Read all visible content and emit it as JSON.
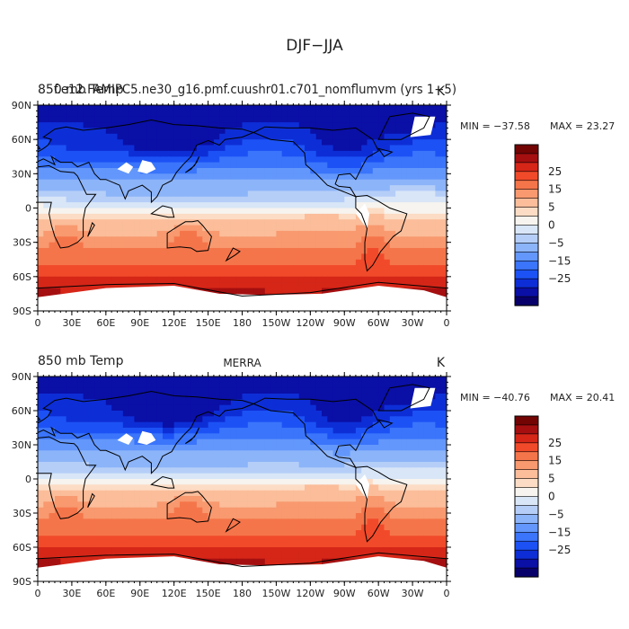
{
  "title": "DJF−JJA",
  "colormap": {
    "colors": [
      "#08006a",
      "#0a0fa6",
      "#0d2ed6",
      "#1c52f5",
      "#3a75fb",
      "#6397fb",
      "#8cb4f9",
      "#b5cef8",
      "#d8e6f7",
      "#f7f3ee",
      "#fcdcc4",
      "#fbbd9a",
      "#f8996f",
      "#f5754a",
      "#f14a2a",
      "#d52618",
      "#a50f10",
      "#730404"
    ],
    "bounds": [
      -35,
      -30,
      -25,
      -20,
      -15,
      -10,
      -5,
      -2.5,
      0,
      2.5,
      5,
      10,
      15,
      20,
      25,
      30,
      35
    ],
    "tick_labels": [
      "25",
      "15",
      "5",
      "0",
      "−5",
      "−15",
      "−25"
    ],
    "tick_values": [
      25,
      15,
      5,
      0,
      -5,
      -15,
      -25
    ]
  },
  "chart_data": [
    {
      "type": "heatmap",
      "title_left": "850 mb Temp",
      "overlap_text": "f.e12.FAMIPC5.ne30_g16.pmf.cuushr01.c701_nomflumvm (yrs 1−5)",
      "title_center": "",
      "units": "K",
      "min_label": "MIN = −37.58",
      "max_label": "MAX =  23.27",
      "min": -37.58,
      "max": 23.27,
      "lat_ticks": [
        "90N",
        "60N",
        "30N",
        "0",
        "30S",
        "60S",
        "90S"
      ],
      "lon_ticks": [
        "0",
        "30E",
        "60E",
        "90E",
        "120E",
        "150E",
        "180",
        "150W",
        "120W",
        "90W",
        "60W",
        "30W",
        "0"
      ],
      "xlim": [
        0,
        360
      ],
      "ylim": [
        -90,
        90
      ]
    },
    {
      "type": "heatmap",
      "title_left": "850 mb Temp",
      "overlap_text": "",
      "title_center": "MERRA",
      "units": "K",
      "min_label": "MIN = −40.76",
      "max_label": "MAX =  20.41",
      "min": -40.76,
      "max": 20.41,
      "lat_ticks": [
        "90N",
        "60N",
        "30N",
        "0",
        "30S",
        "60S",
        "90S"
      ],
      "lon_ticks": [
        "0",
        "30E",
        "60E",
        "90E",
        "120E",
        "150E",
        "180",
        "150W",
        "120W",
        "90W",
        "60W",
        "30W",
        "0"
      ],
      "xlim": [
        0,
        360
      ],
      "ylim": [
        -90,
        90
      ]
    }
  ]
}
